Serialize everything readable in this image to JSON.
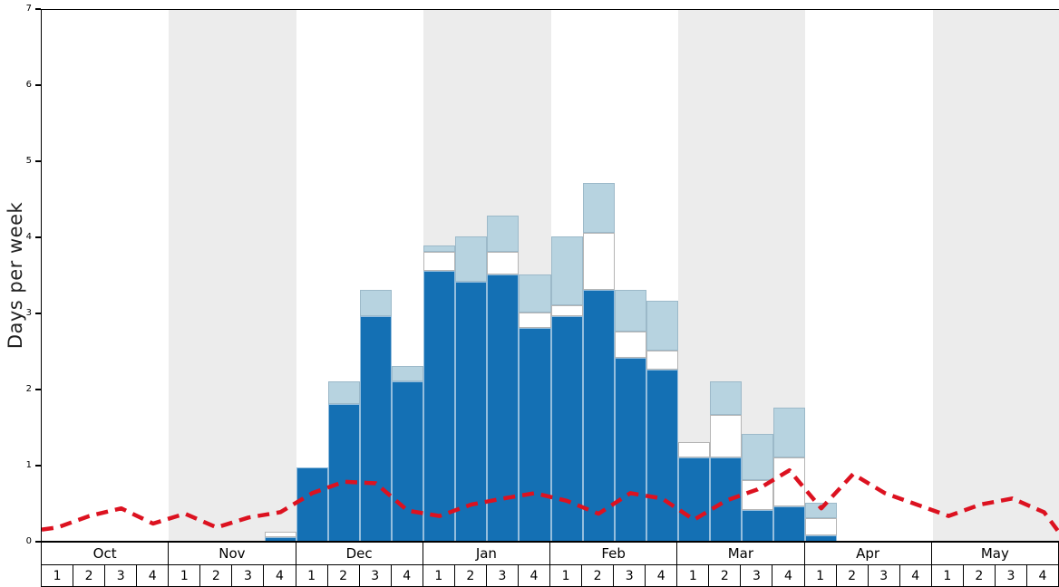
{
  "chart_data": {
    "type": "bar",
    "stacked": true,
    "title": "",
    "ylabel": "Days per week",
    "ylim": [
      0,
      7
    ],
    "yticks": [
      "0",
      "1",
      "2",
      "3",
      "4",
      "5",
      "6",
      "7"
    ],
    "grid": false,
    "legend": "none",
    "months": [
      "Oct",
      "Nov",
      "Dec",
      "Jan",
      "Feb",
      "Mar",
      "Apr",
      "May"
    ],
    "week_labels": [
      "1",
      "2",
      "3",
      "4"
    ],
    "colors": {
      "band": "#ececec",
      "dark_blue": "#1470b4",
      "white": "#ffffff",
      "light_blue": "#b7d3e0",
      "red_line": "#dc1220"
    },
    "series": [
      {
        "name": "snow-days-dark-blue",
        "key": "dark",
        "color": "#1470b4",
        "values": [
          0,
          0,
          0,
          0,
          0,
          0,
          0,
          0.05,
          0.97,
          1.8,
          2.95,
          2.1,
          3.55,
          3.4,
          3.5,
          2.8,
          2.95,
          3.3,
          2.4,
          2.25,
          1.1,
          1.1,
          0.4,
          0.45,
          0.07,
          0,
          0,
          0,
          0,
          0,
          0,
          0
        ]
      },
      {
        "name": "snow-days-white",
        "key": "white",
        "color": "#ffffff",
        "values": [
          0,
          0,
          0,
          0,
          0,
          0,
          0,
          0.07,
          0,
          0,
          0,
          0,
          0.25,
          0,
          0.3,
          0.2,
          0.15,
          0.75,
          0.35,
          0.25,
          0.2,
          0.55,
          0.4,
          0.65,
          0.23,
          0,
          0,
          0,
          0,
          0,
          0,
          0
        ]
      },
      {
        "name": "snow-days-light-blue",
        "key": "light",
        "color": "#b7d3e0",
        "values": [
          0,
          0,
          0,
          0,
          0,
          0,
          0,
          0,
          0,
          0.3,
          0.35,
          0.2,
          0.08,
          0.6,
          0.47,
          0.5,
          0.9,
          0.65,
          0.55,
          0.65,
          0,
          0.45,
          0.6,
          0.65,
          0.2,
          0,
          0,
          0,
          0,
          0,
          0,
          0
        ]
      }
    ],
    "line": {
      "name": "red-dashed-average-line",
      "color": "#dc1220",
      "dash": [
        13,
        8
      ],
      "width": 4.5,
      "edge_start": 0.17,
      "edge_end": 0.12,
      "values": [
        0.2,
        0.35,
        0.45,
        0.25,
        0.38,
        0.2,
        0.33,
        0.4,
        0.65,
        0.8,
        0.78,
        0.42,
        0.35,
        0.5,
        0.58,
        0.65,
        0.55,
        0.38,
        0.65,
        0.58,
        0.3,
        0.55,
        0.7,
        0.95,
        0.45,
        0.9,
        0.65,
        0.5,
        0.35,
        0.5,
        0.58,
        0.4
      ]
    }
  }
}
